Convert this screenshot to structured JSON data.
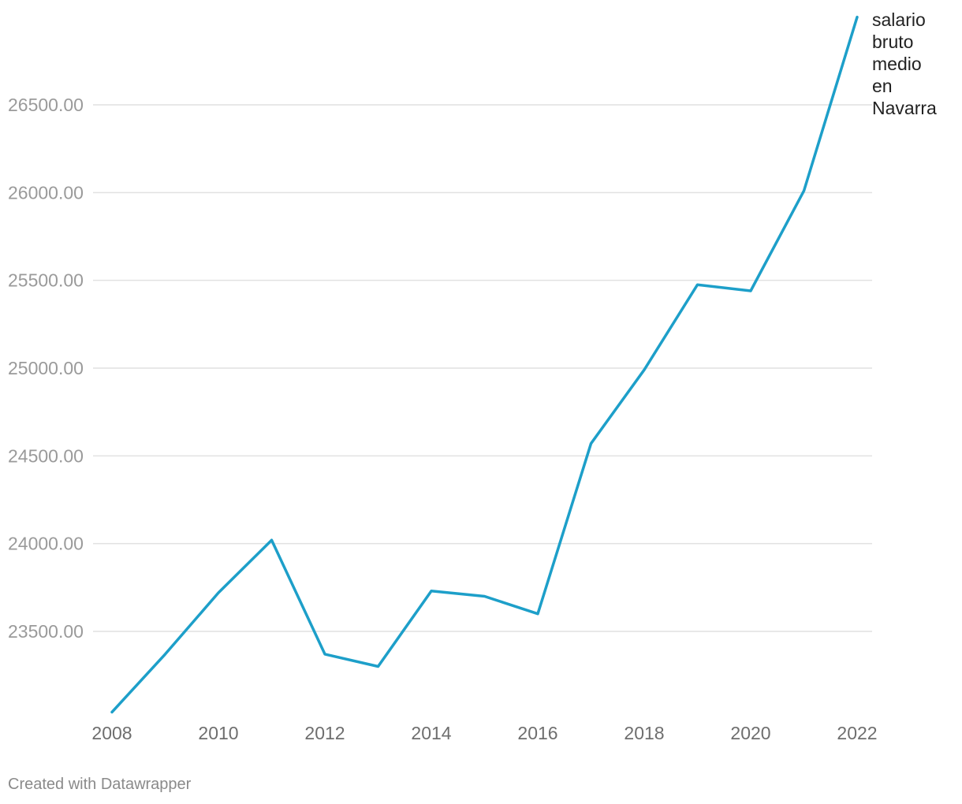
{
  "chart_data": {
    "type": "line",
    "title": "",
    "xlabel": "",
    "ylabel": "",
    "x": [
      2008,
      2009,
      2010,
      2011,
      2012,
      2013,
      2014,
      2015,
      2016,
      2017,
      2018,
      2019,
      2020,
      2021,
      2022
    ],
    "series": [
      {
        "name": "salario bruto medio en Navarra",
        "label_lines": [
          "salario",
          "bruto",
          "medio",
          "en",
          "Navarra"
        ],
        "color": "#1d9fc9",
        "values": [
          23040,
          23370,
          23720,
          24020,
          23370,
          23300,
          23730,
          23700,
          23600,
          24570,
          24990,
          25475,
          25440,
          26010,
          27000
        ]
      }
    ],
    "xticks": [
      2008,
      2010,
      2012,
      2014,
      2016,
      2018,
      2020,
      2022
    ],
    "yticks": [
      23500,
      24000,
      24500,
      25000,
      25500,
      26000,
      26500
    ],
    "ytick_labels": [
      "23500.00",
      "24000.00",
      "24500.00",
      "25000.00",
      "25500.00",
      "26000.00",
      "26500.00"
    ],
    "xlim": [
      2008,
      2022
    ],
    "ylim": [
      23040,
      27000
    ],
    "grid": true,
    "legend": "none"
  },
  "footer": {
    "credit": "Created with Datawrapper"
  }
}
